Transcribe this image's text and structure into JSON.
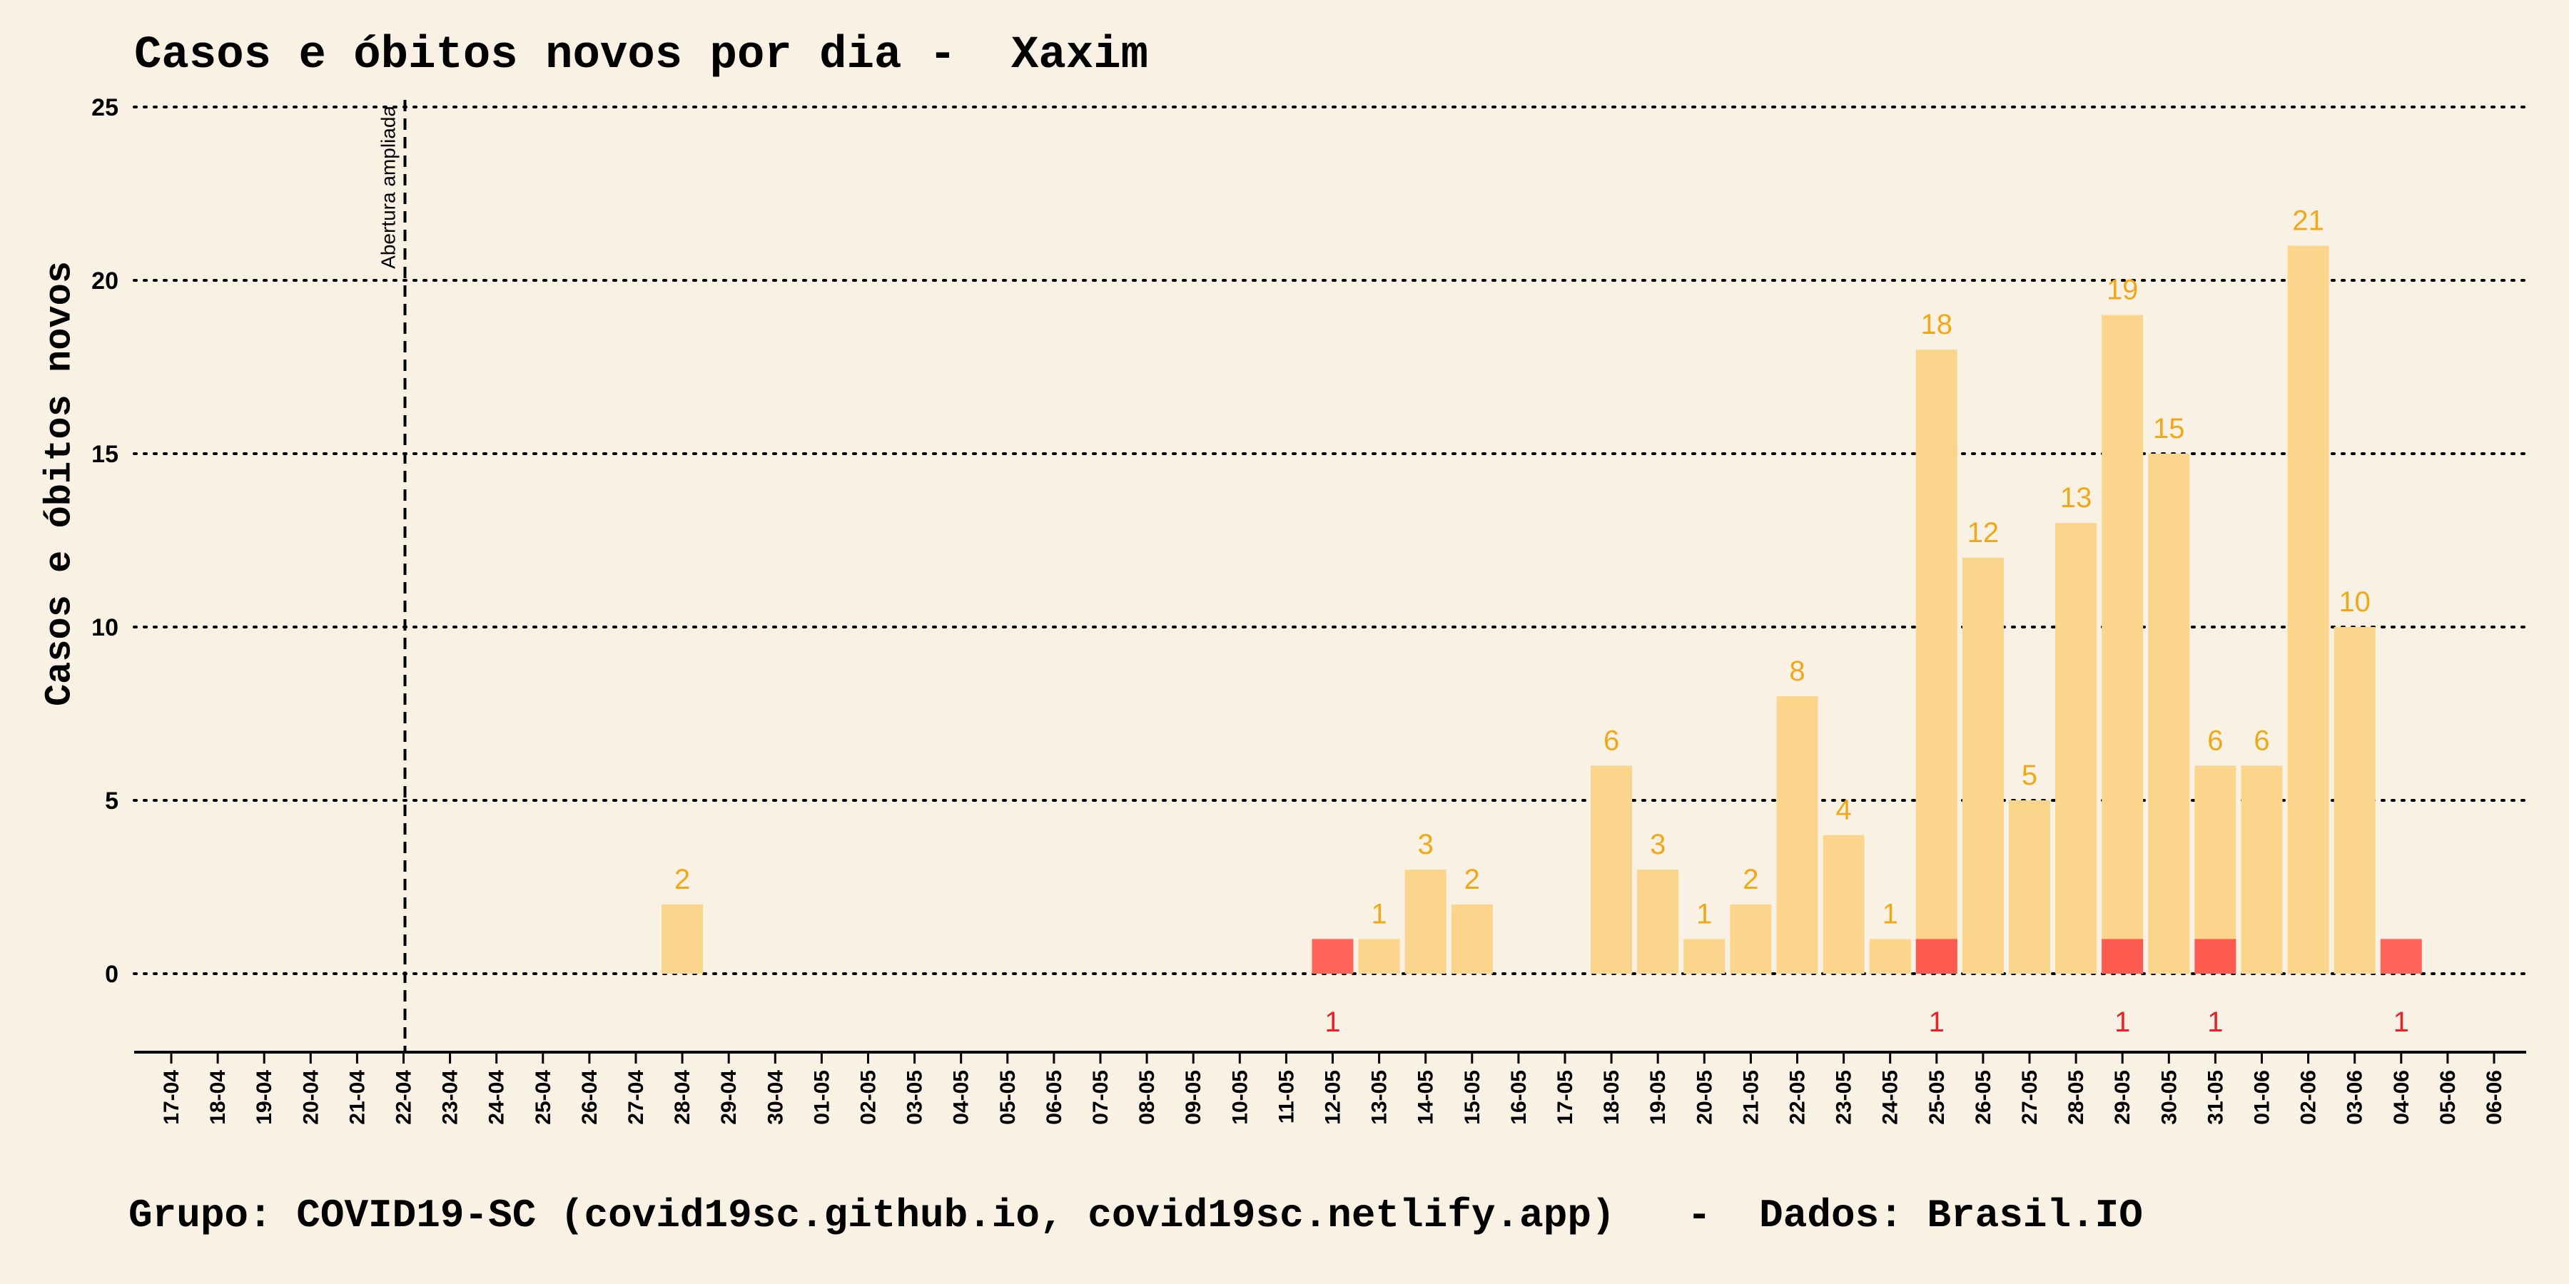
{
  "title": "Casos e óbitos novos por dia -  Xaxim",
  "footer": "Grupo: COVID19-SC (covid19sc.github.io, covid19sc.netlify.app)   -  Dados: Brasil.IO",
  "colors": {
    "background": "#f9f2e4",
    "cases": "#fbd58b",
    "deaths": "#ff5a50",
    "cases_label": "#f0a818",
    "deaths_label": "#e8202a"
  },
  "chart_data": {
    "type": "bar",
    "ylabel": "Casos e óbitos novos",
    "xlabel": "",
    "ylim": [
      0,
      25
    ],
    "yticks": [
      0,
      5,
      10,
      15,
      20,
      25
    ],
    "grid": "horizontal dotted",
    "categories": [
      "17-04",
      "18-04",
      "19-04",
      "20-04",
      "21-04",
      "22-04",
      "23-04",
      "24-04",
      "25-04",
      "26-04",
      "27-04",
      "28-04",
      "29-04",
      "30-04",
      "01-05",
      "02-05",
      "03-05",
      "04-05",
      "05-05",
      "06-05",
      "07-05",
      "08-05",
      "09-05",
      "10-05",
      "11-05",
      "12-05",
      "13-05",
      "14-05",
      "15-05",
      "16-05",
      "17-05",
      "18-05",
      "19-05",
      "20-05",
      "21-05",
      "22-05",
      "23-05",
      "24-05",
      "25-05",
      "26-05",
      "27-05",
      "28-05",
      "29-05",
      "30-05",
      "31-05",
      "01-06",
      "02-06",
      "03-06",
      "04-06",
      "05-06",
      "06-06"
    ],
    "series": [
      {
        "values": [
          0,
          0,
          0,
          0,
          0,
          0,
          0,
          0,
          0,
          0,
          0,
          2,
          0,
          0,
          0,
          0,
          0,
          0,
          0,
          0,
          0,
          0,
          0,
          0,
          0,
          0,
          1,
          3,
          2,
          0,
          0,
          6,
          3,
          1,
          2,
          8,
          4,
          1,
          18,
          12,
          5,
          13,
          19,
          15,
          6,
          6,
          21,
          10,
          0,
          0,
          0
        ]
      },
      {
        "values": [
          0,
          0,
          0,
          0,
          0,
          0,
          0,
          0,
          0,
          0,
          0,
          0,
          0,
          0,
          0,
          0,
          0,
          0,
          0,
          0,
          0,
          0,
          0,
          0,
          0,
          1,
          0,
          0,
          0,
          0,
          0,
          0,
          0,
          0,
          0,
          0,
          0,
          0,
          1,
          0,
          0,
          0,
          1,
          0,
          1,
          0,
          0,
          0,
          1,
          0,
          0
        ]
      }
    ],
    "annotations": [
      {
        "x": "22-04",
        "text": "Abertura ampliada",
        "style": "dashed vertical line"
      }
    ]
  }
}
